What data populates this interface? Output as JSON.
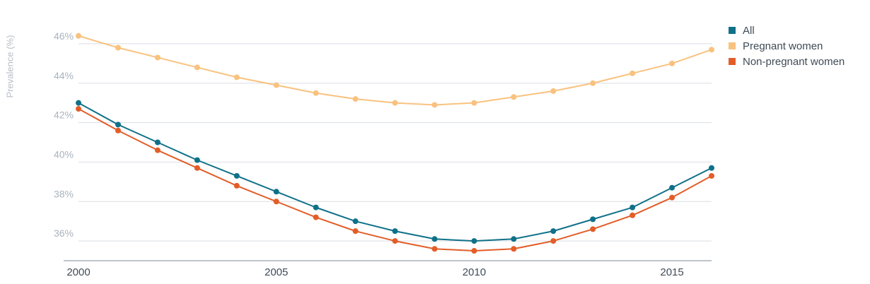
{
  "chart_data": {
    "type": "line",
    "title": "",
    "xlabel": "",
    "ylabel": "Prevalence (%)",
    "x": [
      2000,
      2001,
      2002,
      2003,
      2004,
      2005,
      2006,
      2007,
      2008,
      2009,
      2010,
      2011,
      2012,
      2013,
      2014,
      2015,
      2016
    ],
    "x_ticks": [
      2000,
      2005,
      2010,
      2015
    ],
    "xlim": [
      2000,
      2016
    ],
    "y_ticks": [
      36,
      38,
      40,
      42,
      44,
      46
    ],
    "y_tick_labels": [
      "36%",
      "38%",
      "40%",
      "42%",
      "44%",
      "46%"
    ],
    "ylim": [
      35,
      47
    ],
    "grid": "horizontal",
    "legend_position": "top-right",
    "series": [
      {
        "name": "All",
        "color": "#0f7189",
        "values": [
          43.0,
          41.9,
          41.0,
          40.1,
          39.3,
          38.5,
          37.7,
          37.0,
          36.5,
          36.1,
          36.0,
          36.1,
          36.5,
          37.1,
          37.7,
          38.7,
          39.7
        ]
      },
      {
        "name": "Pregnant women",
        "color": "#f9c27f",
        "values": [
          46.4,
          45.8,
          45.3,
          44.8,
          44.3,
          43.9,
          43.5,
          43.2,
          43.0,
          42.9,
          43.0,
          43.3,
          43.6,
          44.0,
          44.5,
          45.0,
          45.7
        ]
      },
      {
        "name": "Non-pregnant women",
        "color": "#e35d28",
        "values": [
          42.7,
          41.6,
          40.6,
          39.7,
          38.8,
          38.0,
          37.2,
          36.5,
          36.0,
          35.6,
          35.5,
          35.6,
          36.0,
          36.6,
          37.3,
          38.2,
          39.3
        ]
      }
    ]
  }
}
